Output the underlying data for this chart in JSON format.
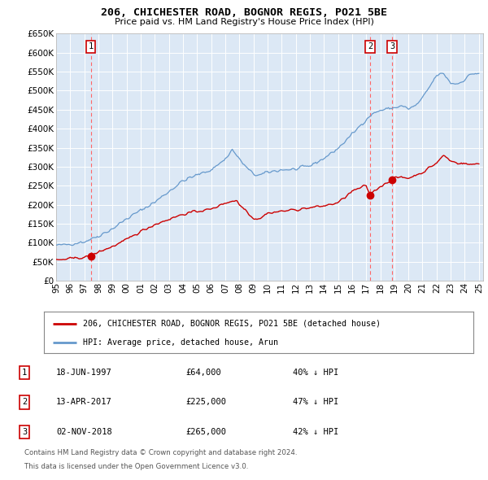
{
  "title": "206, CHICHESTER ROAD, BOGNOR REGIS, PO21 5BE",
  "subtitle": "Price paid vs. HM Land Registry's House Price Index (HPI)",
  "legend_line1": "206, CHICHESTER ROAD, BOGNOR REGIS, PO21 5BE (detached house)",
  "legend_line2": "HPI: Average price, detached house, Arun",
  "footer1": "Contains HM Land Registry data © Crown copyright and database right 2024.",
  "footer2": "This data is licensed under the Open Government Licence v3.0.",
  "sales": [
    {
      "num": 1,
      "date": "18-JUN-1997",
      "price": 64000,
      "year": 1997.46,
      "label": "£64,000",
      "pct": "40% ↓ HPI"
    },
    {
      "num": 2,
      "date": "13-APR-2017",
      "price": 225000,
      "year": 2017.28,
      "label": "£225,000",
      "pct": "47% ↓ HPI"
    },
    {
      "num": 3,
      "date": "02-NOV-2018",
      "price": 265000,
      "year": 2018.84,
      "label": "£265,000",
      "pct": "42% ↓ HPI"
    }
  ],
  "plot_bg": "#dce8f5",
  "fig_bg": "#ffffff",
  "red_line_color": "#cc0000",
  "blue_line_color": "#6699cc",
  "vline_color_red": "#ff6666",
  "ylim": [
    0,
    650000
  ],
  "xlim_start": 1995.0,
  "xlim_end": 2025.3,
  "yticks": [
    0,
    50000,
    100000,
    150000,
    200000,
    250000,
    300000,
    350000,
    400000,
    450000,
    500000,
    550000,
    600000,
    650000
  ],
  "xticks": [
    1995,
    1996,
    1997,
    1998,
    1999,
    2000,
    2001,
    2002,
    2003,
    2004,
    2005,
    2006,
    2007,
    2008,
    2009,
    2010,
    2011,
    2012,
    2013,
    2014,
    2015,
    2016,
    2017,
    2018,
    2019,
    2020,
    2021,
    2022,
    2023,
    2024,
    2025
  ]
}
